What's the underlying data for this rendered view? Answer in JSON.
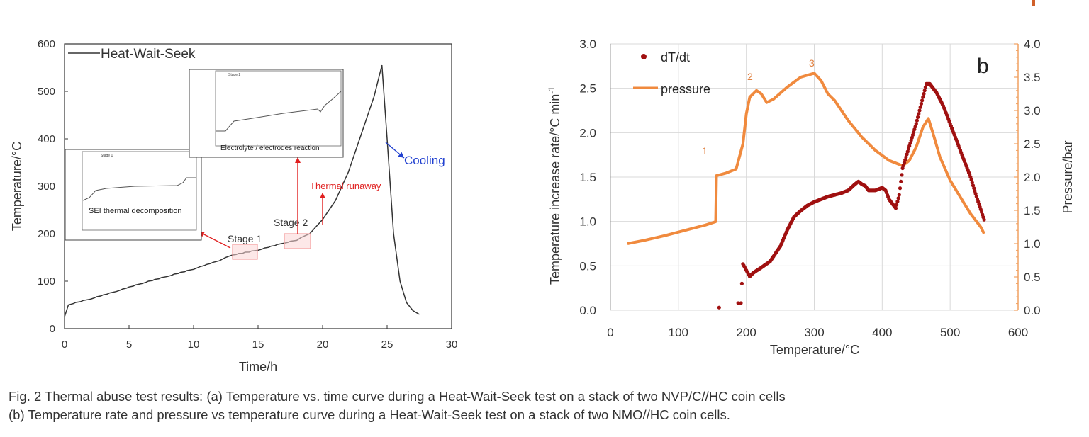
{
  "colors": {
    "line_a": "#333333",
    "box_a": "#f4a0a0",
    "arrow_a": "#e02020",
    "cooling": "#2040d0",
    "dtdt": "#a01010",
    "pressure": "#f08a3e",
    "pressure_axis": "#f0a060",
    "label_orange": "#e08040",
    "corner": "#d0602a"
  },
  "caption": {
    "line1": "Fig. 2 Thermal abuse test results: (a) Temperature vs. time curve during a Heat-Wait-Seek test on a stack of two NVP/C//HC coin cells",
    "line2": "(b) Temperature rate and pressure vs temperature curve during a Heat-Wait-Seek test on a stack of two NMO//HC coin cells."
  },
  "chart_data": [
    {
      "type": "line",
      "xlabel": "Time/h",
      "ylabel": "Temperature/°C",
      "xlim": [
        0,
        30
      ],
      "ylim": [
        0,
        600
      ],
      "xticks": [
        0,
        5,
        10,
        15,
        20,
        25,
        30
      ],
      "yticks": [
        0,
        100,
        200,
        300,
        400,
        500,
        600
      ],
      "grid": false,
      "legend": "top-left",
      "series": [
        {
          "name": "Heat-Wait-Seek",
          "x": [
            0,
            0.3,
            2,
            4,
            6,
            8,
            10,
            12,
            13,
            15,
            17,
            18,
            19,
            20,
            21,
            22,
            23,
            24,
            24.6,
            25,
            25.5,
            26,
            26.5,
            27,
            27.5
          ],
          "y": [
            25,
            50,
            62,
            78,
            95,
            110,
            125,
            143,
            155,
            165,
            180,
            186,
            200,
            230,
            270,
            330,
            410,
            490,
            555,
            400,
            200,
            100,
            55,
            38,
            30
          ]
        }
      ],
      "annotations": {
        "stage1": "Stage 1",
        "stage2": "Stage 2",
        "thermal_runaway": "Thermal runaway",
        "cooling": "Cooling",
        "inset1_label": "SEI thermal decomposition",
        "inset2_label": "Electrolyte / electrodes reaction",
        "inset1_title": "Stage 1",
        "inset2_title": "Stage 2"
      }
    },
    {
      "type": "scatter",
      "xlabel": "Temperature/°C",
      "ylabel": "Temperature  increase rate/°C min",
      "ylabel_sup": "-1",
      "y2label": "Pressure/bar",
      "panel_label": "b",
      "xlim": [
        0,
        600
      ],
      "ylim": [
        0,
        3
      ],
      "y2lim": [
        0,
        4
      ],
      "xticks": [
        0,
        100,
        200,
        300,
        400,
        500,
        600
      ],
      "yticks": [
        "0.0",
        "0.5",
        "1.0",
        "1.5",
        "2.0",
        "2.5",
        "3.0"
      ],
      "y2ticks": [
        "0.0",
        "0.5",
        "1.0",
        "1.5",
        "2.0",
        "2.5",
        "3.0",
        "3.5",
        "4.0"
      ],
      "grid": true,
      "legend": "top-left",
      "point_labels": [
        "1",
        "2",
        "3"
      ],
      "series": [
        {
          "name": "dT/dt",
          "x": [
            160,
            188,
            192,
            195,
            200,
            205,
            210,
            220,
            235,
            250,
            260,
            270,
            280,
            290,
            300,
            310,
            320,
            330,
            340,
            350,
            360,
            365,
            370,
            375,
            380,
            390,
            400,
            405,
            410,
            415,
            420,
            425,
            430,
            440,
            450,
            460,
            465,
            470,
            480,
            490,
            500,
            510,
            520,
            530,
            540,
            550
          ],
          "y": [
            0.03,
            0.08,
            0.08,
            0.52,
            0.45,
            0.38,
            0.42,
            0.47,
            0.55,
            0.72,
            0.9,
            1.05,
            1.12,
            1.18,
            1.22,
            1.25,
            1.28,
            1.3,
            1.32,
            1.35,
            1.42,
            1.45,
            1.42,
            1.4,
            1.35,
            1.35,
            1.38,
            1.35,
            1.25,
            1.2,
            1.15,
            1.3,
            1.6,
            1.85,
            2.1,
            2.4,
            2.55,
            2.55,
            2.45,
            2.3,
            2.1,
            1.9,
            1.7,
            1.5,
            1.25,
            1.02
          ]
        },
        {
          "name": "pressure",
          "x": [
            25,
            50,
            80,
            110,
            140,
            155,
            156,
            170,
            185,
            195,
            200,
            205,
            215,
            222,
            230,
            240,
            260,
            280,
            300,
            310,
            320,
            330,
            350,
            370,
            390,
            410,
            430,
            440,
            450,
            460,
            468,
            475,
            485,
            500,
            515,
            530,
            545,
            550
          ],
          "y": [
            1.0,
            1.05,
            1.12,
            1.2,
            1.28,
            1.33,
            2.02,
            2.06,
            2.12,
            2.5,
            2.95,
            3.2,
            3.3,
            3.25,
            3.12,
            3.17,
            3.35,
            3.5,
            3.56,
            3.45,
            3.25,
            3.15,
            2.85,
            2.6,
            2.4,
            2.25,
            2.17,
            2.25,
            2.45,
            2.75,
            2.88,
            2.65,
            2.3,
            1.95,
            1.7,
            1.45,
            1.25,
            1.15
          ]
        }
      ]
    }
  ]
}
